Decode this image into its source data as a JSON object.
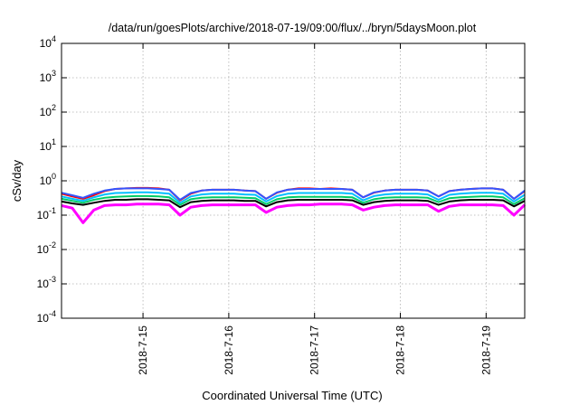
{
  "chart_data": {
    "type": "line",
    "title": "/data/run/goesPlots/archive/2018-07-19/09:00/flux/../bryn/5daysMoon.plot",
    "xlabel": "Coordinated Universal Time (UTC)",
    "ylabel": "cSv/day",
    "y_scale": "log",
    "ylim": [
      0.0001,
      10000
    ],
    "y_ticks": [
      {
        "base": "10",
        "exp": "4"
      },
      {
        "base": "10",
        "exp": "3"
      },
      {
        "base": "10",
        "exp": "2"
      },
      {
        "base": "10",
        "exp": "1"
      },
      {
        "base": "10",
        "exp": "0"
      },
      {
        "base": "10",
        "exp": "-1"
      },
      {
        "base": "10",
        "exp": "-2"
      },
      {
        "base": "10",
        "exp": "-3"
      },
      {
        "base": "10",
        "exp": "-4"
      }
    ],
    "x_ticks": [
      "2018-7-15",
      "2018-7-16",
      "2018-7-17",
      "2018-7-18",
      "2018-7-19"
    ],
    "xlim_days": [
      14.05,
      19.45
    ],
    "grid": true,
    "series_colors": [
      "#ff00ff",
      "#ff0000",
      "#000000",
      "#00cc66",
      "#00bfff",
      "#3355ff"
    ],
    "series": [
      {
        "color": "#ff00ff",
        "values": [
          0.19,
          0.16,
          0.06,
          0.14,
          0.19,
          0.2,
          0.2,
          0.21,
          0.21,
          0.21,
          0.2,
          0.1,
          0.17,
          0.19,
          0.2,
          0.2,
          0.2,
          0.2,
          0.2,
          0.12,
          0.17,
          0.19,
          0.2,
          0.2,
          0.21,
          0.21,
          0.21,
          0.2,
          0.14,
          0.17,
          0.19,
          0.2,
          0.2,
          0.2,
          0.2,
          0.13,
          0.18,
          0.2,
          0.2,
          0.2,
          0.2,
          0.19,
          0.1,
          0.2
        ]
      },
      {
        "color": "#ff0000",
        "values": [
          0.42,
          0.35,
          0.3,
          0.38,
          0.5,
          0.58,
          0.6,
          0.62,
          0.62,
          0.6,
          0.55,
          0.27,
          0.42,
          0.52,
          0.55,
          0.55,
          0.55,
          0.52,
          0.5,
          0.3,
          0.45,
          0.55,
          0.6,
          0.6,
          0.58,
          0.6,
          0.58,
          0.55,
          0.33,
          0.45,
          0.52,
          0.55,
          0.55,
          0.55,
          0.52,
          0.35,
          0.5,
          0.55,
          0.58,
          0.6,
          0.6,
          0.55,
          0.3,
          0.5
        ]
      },
      {
        "color": "#000000",
        "values": [
          0.25,
          0.22,
          0.2,
          0.23,
          0.26,
          0.28,
          0.28,
          0.29,
          0.29,
          0.28,
          0.27,
          0.17,
          0.24,
          0.26,
          0.27,
          0.27,
          0.27,
          0.26,
          0.26,
          0.18,
          0.24,
          0.27,
          0.28,
          0.28,
          0.28,
          0.28,
          0.28,
          0.27,
          0.2,
          0.24,
          0.26,
          0.27,
          0.27,
          0.27,
          0.26,
          0.2,
          0.25,
          0.27,
          0.28,
          0.28,
          0.28,
          0.27,
          0.18,
          0.26
        ]
      },
      {
        "color": "#00cc66",
        "values": [
          0.3,
          0.26,
          0.23,
          0.28,
          0.32,
          0.34,
          0.35,
          0.36,
          0.36,
          0.35,
          0.33,
          0.2,
          0.29,
          0.32,
          0.33,
          0.33,
          0.33,
          0.32,
          0.31,
          0.21,
          0.29,
          0.33,
          0.34,
          0.34,
          0.34,
          0.34,
          0.34,
          0.33,
          0.23,
          0.29,
          0.32,
          0.33,
          0.33,
          0.33,
          0.32,
          0.24,
          0.31,
          0.33,
          0.34,
          0.35,
          0.35,
          0.33,
          0.21,
          0.31
        ]
      },
      {
        "color": "#00bfff",
        "values": [
          0.35,
          0.3,
          0.26,
          0.33,
          0.4,
          0.44,
          0.45,
          0.46,
          0.46,
          0.45,
          0.42,
          0.23,
          0.35,
          0.4,
          0.42,
          0.42,
          0.42,
          0.4,
          0.39,
          0.25,
          0.36,
          0.42,
          0.44,
          0.44,
          0.44,
          0.44,
          0.44,
          0.42,
          0.27,
          0.36,
          0.4,
          0.42,
          0.42,
          0.42,
          0.4,
          0.28,
          0.39,
          0.42,
          0.44,
          0.45,
          0.45,
          0.42,
          0.25,
          0.39
        ]
      },
      {
        "color": "#3355ff",
        "values": [
          0.45,
          0.38,
          0.32,
          0.42,
          0.52,
          0.58,
          0.6,
          0.6,
          0.6,
          0.58,
          0.55,
          0.28,
          0.44,
          0.52,
          0.55,
          0.55,
          0.55,
          0.52,
          0.5,
          0.3,
          0.46,
          0.55,
          0.58,
          0.58,
          0.58,
          0.58,
          0.58,
          0.55,
          0.33,
          0.46,
          0.52,
          0.55,
          0.55,
          0.55,
          0.52,
          0.35,
          0.5,
          0.55,
          0.58,
          0.6,
          0.6,
          0.55,
          0.3,
          0.52
        ]
      }
    ]
  }
}
